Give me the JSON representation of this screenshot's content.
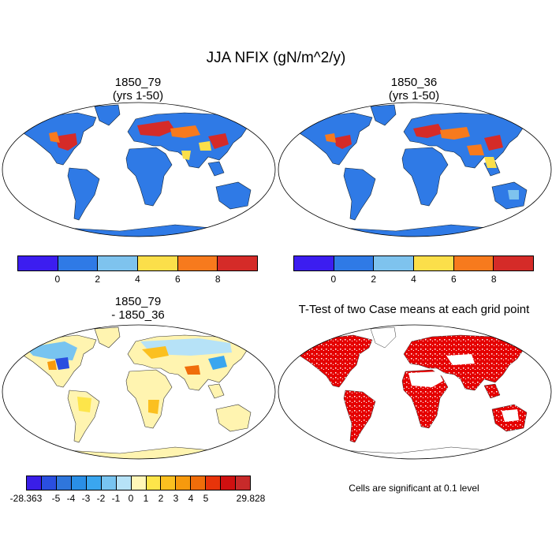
{
  "title": "JJA NFIX (gN/m^2/y)",
  "panels": [
    {
      "title_line1": "1850_79",
      "title_line2": "(yrs 1-50)"
    },
    {
      "title_line1": "1850_36",
      "title_line2": "(yrs 1-50)"
    },
    {
      "title_line1": "1850_79",
      "title_line2": "- 1850_36"
    },
    {
      "title_line1": "T-Test of two Case means at each grid point",
      "title_line2": ""
    }
  ],
  "colorbar_top": {
    "colors": [
      "#3c1df0",
      "#2f7ae6",
      "#7ec3ee",
      "#fbdf4a",
      "#f77a1d",
      "#d52b28"
    ],
    "labels": [
      "0",
      "2",
      "4",
      "6",
      "8"
    ]
  },
  "colorbar_diff": {
    "colors": [
      "#3a1ee8",
      "#2a4fe0",
      "#2f76dc",
      "#2a8fe6",
      "#3aa6ef",
      "#78c4f0",
      "#b6e2f7",
      "#fff7b8",
      "#fde54a",
      "#fbc020",
      "#f79a0d",
      "#f06d0a",
      "#e8340a",
      "#d01010",
      "#c82a2a"
    ],
    "labels": [
      "-28.363",
      "-5",
      "-4",
      "-3",
      "-2",
      "-1",
      "0",
      "1",
      "2",
      "3",
      "4",
      "5",
      "29.828"
    ]
  },
  "significance_note": "Cells are significant at 0.1 level",
  "colors": {
    "ocean": "#ffffff",
    "land_base": "#2f7ae6",
    "diff_land": "#fff4b0",
    "significant": "#e50000"
  }
}
